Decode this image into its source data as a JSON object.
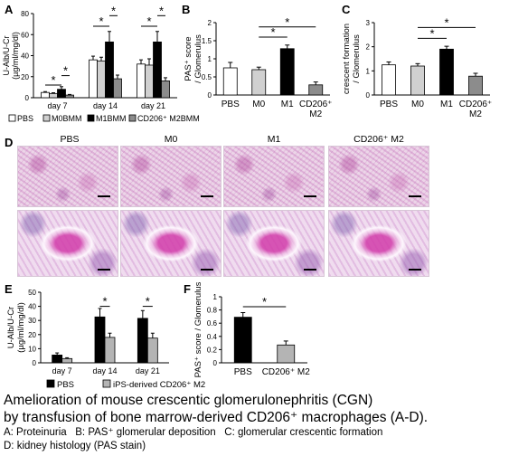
{
  "panels": {
    "A": "A",
    "B": "B",
    "C": "C",
    "D": "D",
    "E": "E",
    "F": "F"
  },
  "chart_data": [
    {
      "id": "A",
      "type": "bar",
      "ylabel": "U-Alb/U-Cr\n(µg/ml/mg/dl)",
      "ylim": [
        0,
        80
      ],
      "yticks": [
        0,
        20,
        40,
        60,
        80
      ],
      "categories": [
        "day 7",
        "day 14",
        "day 21"
      ],
      "series": [
        {
          "name": "PBS",
          "values": [
            5,
            36,
            32
          ],
          "errors": [
            0.8,
            3.5,
            4
          ],
          "color": "#ffffff"
        },
        {
          "name": "M0BMM",
          "values": [
            4,
            35,
            31
          ],
          "errors": [
            0.7,
            3.5,
            6
          ],
          "color": "#d0d0d0"
        },
        {
          "name": "M1BMM",
          "values": [
            8,
            53,
            53
          ],
          "errors": [
            2.5,
            10,
            10
          ],
          "color": "#000000"
        },
        {
          "name": "CD206⁺ M2BMM",
          "values": [
            2.5,
            18,
            16
          ],
          "errors": [
            0.6,
            3.5,
            3
          ],
          "color": "#8c8c8c"
        }
      ],
      "legend": [
        "PBS",
        "M0BMM",
        "M1BMM",
        "CD206⁺ M2BMM"
      ],
      "significance": [
        "*",
        "*",
        "*",
        "*",
        "*",
        "*"
      ]
    },
    {
      "id": "B",
      "type": "bar",
      "ylabel": "PAS⁺ score\n/ Glomerulus",
      "ylim": [
        0,
        2
      ],
      "yticks": [
        0,
        0.5,
        1,
        1.5,
        2
      ],
      "categories": [
        "PBS",
        "M0",
        "M1",
        "CD206⁺\nM2"
      ],
      "values": [
        0.75,
        0.7,
        1.28,
        0.28
      ],
      "errors": [
        0.15,
        0.07,
        0.1,
        0.08
      ],
      "colors": [
        "#ffffff",
        "#d0d0d0",
        "#000000",
        "#8c8c8c"
      ],
      "significance": [
        "*",
        "*"
      ]
    },
    {
      "id": "C",
      "type": "bar",
      "ylabel": "crescent formation\n/ Glomerulus",
      "ylim": [
        0,
        3
      ],
      "yticks": [
        0,
        1,
        2,
        3
      ],
      "categories": [
        "PBS",
        "M0",
        "M1",
        "CD206⁺\nM2"
      ],
      "values": [
        1.25,
        1.2,
        1.9,
        0.78
      ],
      "errors": [
        0.12,
        0.1,
        0.12,
        0.12
      ],
      "colors": [
        "#ffffff",
        "#d0d0d0",
        "#000000",
        "#8c8c8c"
      ],
      "significance": [
        "*",
        "*"
      ]
    },
    {
      "id": "E",
      "type": "bar",
      "ylabel": "U-Alb/U-Cr\n(µg/ml/mg/dl)",
      "ylim": [
        0,
        50
      ],
      "yticks": [
        0,
        10,
        20,
        30,
        40,
        50
      ],
      "categories": [
        "day 7",
        "day 14",
        "day 21"
      ],
      "series": [
        {
          "name": "PBS",
          "values": [
            5.5,
            32.5,
            31.5
          ],
          "errors": [
            1.5,
            6,
            5.5
          ],
          "color": "#000000"
        },
        {
          "name": "iPS-derived CD206⁺ M2",
          "values": [
            3,
            18,
            17.5
          ],
          "errors": [
            0.6,
            3,
            3.5
          ],
          "color": "#b4b4b4"
        }
      ],
      "legend": [
        "PBS",
        "iPS-derived CD206⁺ M2"
      ],
      "significance": [
        "*",
        "*"
      ]
    },
    {
      "id": "F",
      "type": "bar",
      "ylabel": "PAS⁺ score / Glomerulus",
      "ylim": [
        0,
        1
      ],
      "yticks": [
        0,
        0.2,
        0.4,
        0.6,
        0.8,
        1
      ],
      "categories": [
        "PBS",
        "CD206⁺ M2"
      ],
      "values": [
        0.69,
        0.27
      ],
      "errors": [
        0.07,
        0.06
      ],
      "colors": [
        "#000000",
        "#b4b4b4"
      ],
      "significance": [
        "*"
      ]
    }
  ],
  "histology": {
    "labels": [
      "PBS",
      "M0",
      "M1",
      "CD206⁺ M2"
    ]
  },
  "caption": {
    "title_line1": "Amelioration of mouse crescentic glomerulonephritis (CGN)",
    "title_line2": "by transfusion of bone marrow-derived CD206⁺ macrophages (A-D).",
    "line3": "A: Proteinuria   B: PAS⁺ glomerular deposition   C: glomerular crescentic formation",
    "line4": "D: kidney histology (PAS stain)"
  }
}
